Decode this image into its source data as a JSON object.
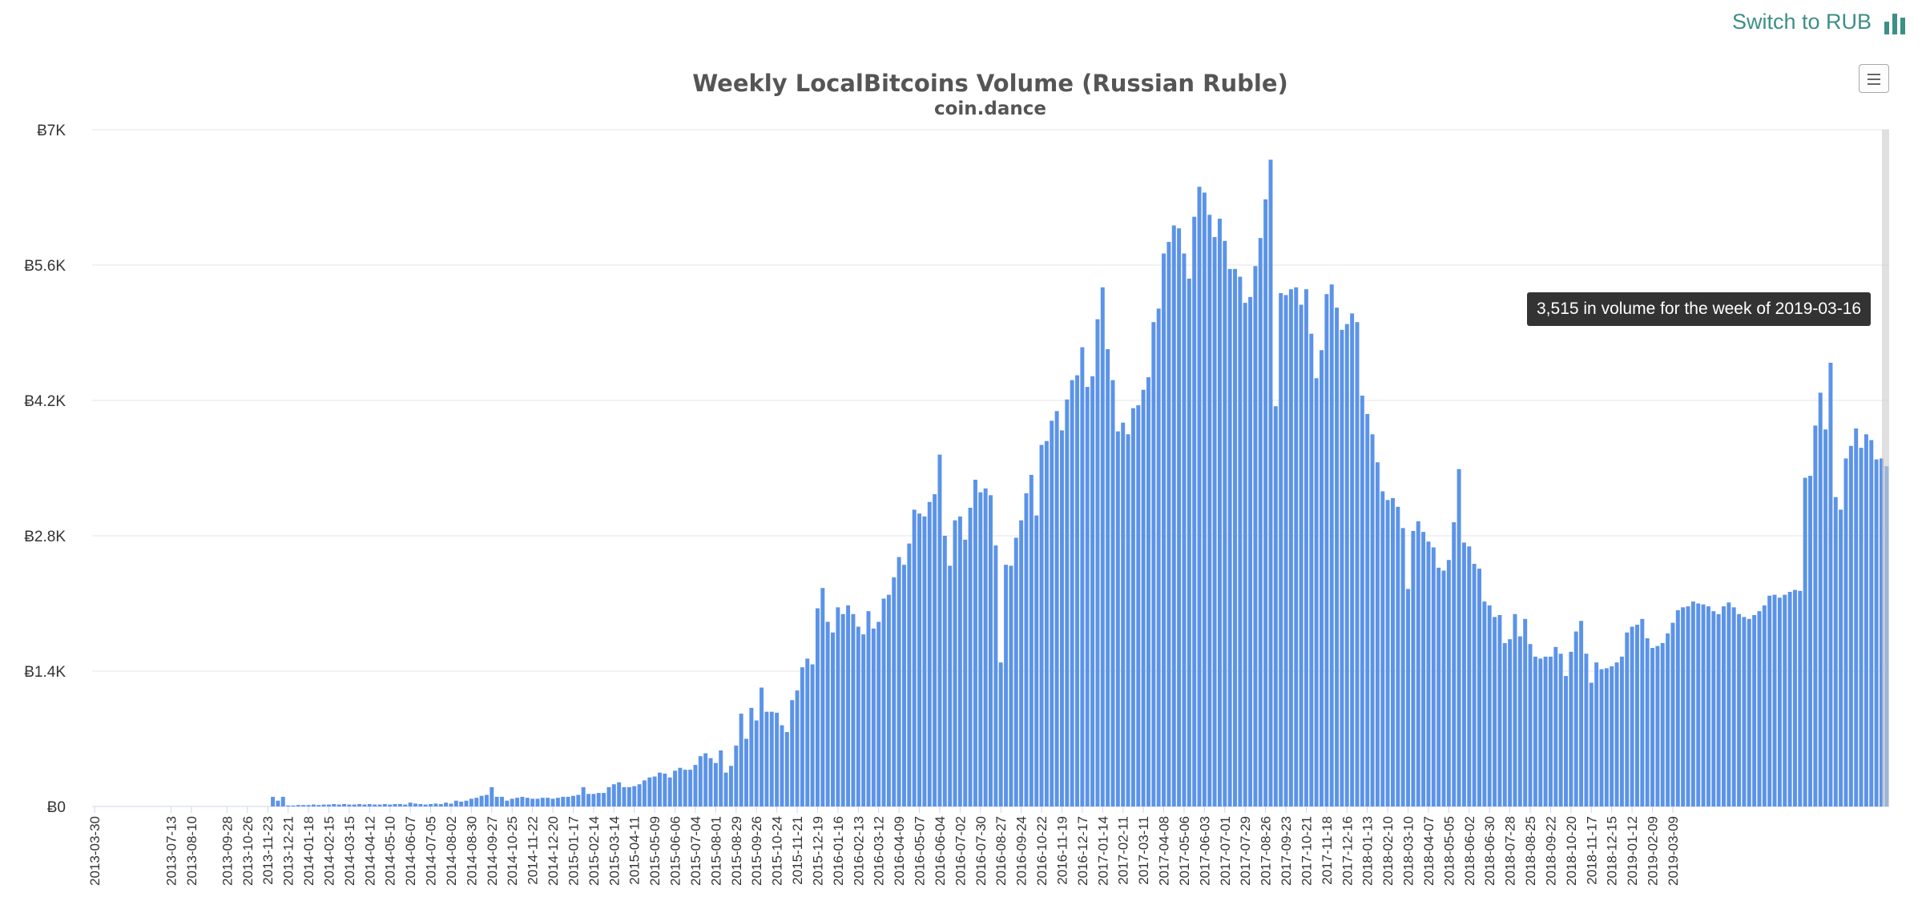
{
  "header": {
    "switch_label": "Switch to RUB",
    "icon": "bar-chart-icon",
    "accent_color": "#3d8f87"
  },
  "menu": {
    "icon": "hamburger-menu-icon"
  },
  "tooltip": {
    "text": "3,515 in volume for the week of 2019-03-16"
  },
  "chart_data": {
    "type": "bar",
    "title": "Weekly LocalBitcoins Volume (Russian Ruble)",
    "subtitle": "coin.dance",
    "xlabel": "",
    "ylabel": "",
    "ylim": [
      0,
      7000
    ],
    "y_ticks": [
      "Ƀ0",
      "Ƀ1.4K",
      "Ƀ2.8K",
      "Ƀ4.2K",
      "Ƀ5.6K",
      "Ƀ7K"
    ],
    "y_tick_values": [
      0,
      1400,
      2800,
      4200,
      5600,
      7000
    ],
    "grid": true,
    "legend": "none",
    "bar_color": "#5b93e8",
    "start_date": "2013-03-30",
    "x_tick_labels": [
      "2013-03-30",
      "2013-07-13",
      "2013-08-10",
      "2013-09-28",
      "2013-10-26",
      "2013-11-23",
      "2013-12-21",
      "2014-01-18",
      "2014-02-15",
      "2014-03-15",
      "2014-04-12",
      "2014-05-10",
      "2014-06-07",
      "2014-07-05",
      "2014-08-02",
      "2014-08-30",
      "2014-09-27",
      "2014-10-25",
      "2014-11-22",
      "2014-12-20",
      "2015-01-17",
      "2015-02-14",
      "2015-03-14",
      "2015-04-11",
      "2015-05-09",
      "2015-06-06",
      "2015-07-04",
      "2015-08-01",
      "2015-08-29",
      "2015-09-26",
      "2015-10-24",
      "2015-11-21",
      "2015-12-19",
      "2016-01-16",
      "2016-02-13",
      "2016-03-12",
      "2016-04-09",
      "2016-05-07",
      "2016-06-04",
      "2016-07-02",
      "2016-07-30",
      "2016-08-27",
      "2016-09-24",
      "2016-10-22",
      "2016-11-19",
      "2016-12-17",
      "2017-01-14",
      "2017-02-11",
      "2017-03-11",
      "2017-04-08",
      "2017-05-06",
      "2017-06-03",
      "2017-07-01",
      "2017-07-29",
      "2017-08-26",
      "2017-09-23",
      "2017-10-21",
      "2017-11-18",
      "2017-12-16",
      "2018-01-13",
      "2018-02-10",
      "2018-03-10",
      "2018-04-07",
      "2018-05-05",
      "2018-06-02",
      "2018-06-30",
      "2018-07-28",
      "2018-08-25",
      "2018-09-22",
      "2018-10-20",
      "2018-11-17",
      "2018-12-15",
      "2019-01-12",
      "2019-02-09",
      "2019-03-09"
    ],
    "values": [
      0,
      0,
      0,
      0,
      0,
      0,
      0,
      0,
      0,
      0,
      0,
      0,
      0,
      0,
      0,
      0,
      0,
      0,
      0,
      0,
      0,
      0,
      0,
      0,
      0,
      0,
      0,
      0,
      0,
      0,
      0,
      0,
      0,
      0,
      0,
      100,
      60,
      100,
      10,
      10,
      15,
      15,
      15,
      20,
      15,
      20,
      20,
      25,
      20,
      25,
      20,
      20,
      25,
      20,
      25,
      20,
      20,
      25,
      20,
      25,
      25,
      20,
      40,
      30,
      25,
      20,
      25,
      30,
      25,
      40,
      30,
      60,
      50,
      60,
      80,
      90,
      110,
      120,
      200,
      100,
      100,
      60,
      80,
      90,
      100,
      90,
      80,
      80,
      90,
      90,
      80,
      90,
      100,
      100,
      110,
      120,
      200,
      130,
      130,
      140,
      140,
      200,
      230,
      250,
      200,
      200,
      210,
      230,
      270,
      300,
      310,
      350,
      340,
      300,
      370,
      400,
      380,
      380,
      430,
      520,
      550,
      500,
      450,
      580,
      350,
      420,
      630,
      960,
      700,
      1020,
      890,
      1230,
      980,
      980,
      970,
      840,
      770,
      1100,
      1200,
      1440,
      1530,
      1470,
      2050,
      2260,
      1910,
      1800,
      2060,
      1990,
      2080,
      1990,
      1860,
      1780,
      2020,
      1840,
      1910,
      2150,
      2190,
      2370,
      2580,
      2500,
      2720,
      3070,
      3030,
      3000,
      3150,
      3230,
      3640,
      2800,
      2490,
      2960,
      3000,
      2760,
      3090,
      3380,
      3250,
      3290,
      3220,
      2700,
      1490,
      2500,
      2490,
      2780,
      2960,
      3240,
      3430,
      3010,
      3740,
      3780,
      3990,
      4090,
      3890,
      4210,
      4410,
      4460,
      4750,
      4340,
      4450,
      5040,
      5370,
      4730,
      4410,
      3880,
      3970,
      3850,
      4120,
      4150,
      4310,
      4440,
      5010,
      5150,
      5720,
      5840,
      6010,
      5980,
      5720,
      5460,
      6100,
      6410,
      6350,
      6120,
      5890,
      6080,
      5850,
      5560,
      5560,
      5480,
      5210,
      5270,
      5590,
      5880,
      6280,
      6690,
      4140,
      5310,
      5290,
      5350,
      5370,
      5190,
      5350,
      4890,
      4430,
      4720,
      5300,
      5400,
      5160,
      4930,
      4990,
      5100,
      5010,
      4250,
      4060,
      3850,
      3560,
      3260,
      3170,
      3190,
      3100,
      2880,
      2250,
      2850,
      2950,
      2840,
      2740,
      2680,
      2470,
      2440,
      2550,
      2940,
      3490,
      2730,
      2690,
      2510,
      2460,
      2120,
      2080,
      1960,
      1980,
      1690,
      1730,
      1990,
      1760,
      1940,
      1680,
      1550,
      1530,
      1550,
      1550,
      1650,
      1580,
      1350,
      1600,
      1810,
      1920,
      1580,
      1280,
      1490,
      1420,
      1430,
      1450,
      1490,
      1550,
      1800,
      1860,
      1880,
      1940,
      1740,
      1640,
      1660,
      1690,
      1790,
      1900,
      2030,
      2060,
      2070,
      2120,
      2100,
      2090,
      2070,
      2020,
      1990,
      2070,
      2110,
      2060,
      1990,
      1960,
      1940,
      1980,
      2020,
      2080,
      2180,
      2190,
      2160,
      2190,
      2220,
      2240,
      2230,
      3400,
      3420,
      3940,
      4280,
      3900,
      4590,
      3200,
      3070,
      3600,
      3730,
      3910,
      3710,
      3850,
      3790,
      3590,
      3600,
      3520
    ]
  }
}
